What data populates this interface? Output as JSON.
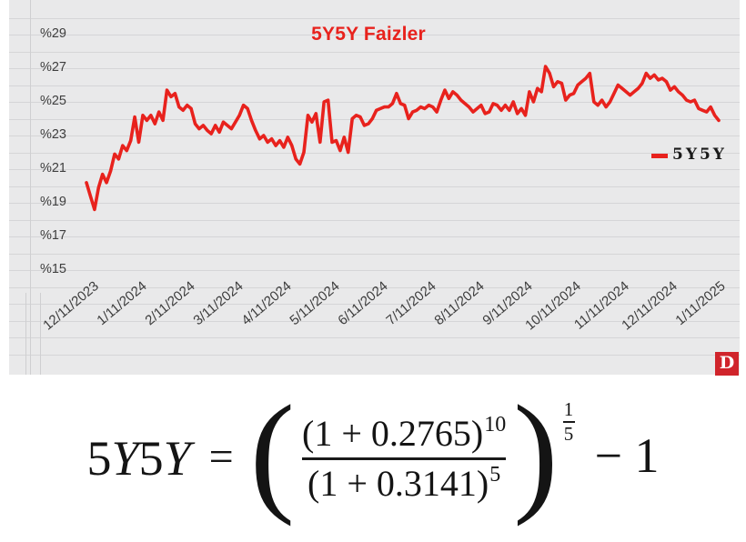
{
  "chart": {
    "title": "5Y5Y Faizler",
    "legend_label": "5Y5Y",
    "brand_letter": "D",
    "colors": {
      "line": "#e8221d",
      "title": "#e8221d",
      "background": "#e9e9ea",
      "grid": "#d5d5d7",
      "label": "#3c3c3c",
      "logo_bg": "#d0242b"
    }
  },
  "chart_data": {
    "type": "line",
    "title": "5Y5Y Faizler",
    "legend_position": "right",
    "grid": true,
    "ylim": [
      14,
      30
    ],
    "y_ticks": [
      29,
      27,
      25,
      23,
      21,
      19,
      17,
      15
    ],
    "y_tick_labels": [
      "%29",
      "%27",
      "%25",
      "%23",
      "%21",
      "%19",
      "%17",
      "%15"
    ],
    "x_tick_labels": [
      "12/11/2023",
      "1/11/2024",
      "2/11/2024",
      "3/11/2024",
      "4/11/2024",
      "5/11/2024",
      "6/11/2024",
      "7/11/2024",
      "8/11/2024",
      "9/11/2024",
      "10/11/2024",
      "11/11/2024",
      "12/11/2024",
      "1/11/2025"
    ],
    "series": [
      {
        "name": "5Y5Y",
        "color": "#e8221d",
        "values": [
          20.2,
          19.4,
          18.6,
          19.9,
          20.7,
          20.2,
          20.9,
          21.9,
          21.6,
          22.4,
          22.1,
          22.7,
          24.1,
          22.6,
          24.2,
          23.9,
          24.2,
          23.7,
          24.4,
          23.9,
          25.7,
          25.3,
          25.5,
          24.7,
          24.5,
          24.8,
          24.6,
          23.7,
          23.4,
          23.6,
          23.3,
          23.1,
          23.6,
          23.2,
          23.8,
          23.6,
          23.4,
          23.8,
          24.2,
          24.8,
          24.6,
          23.9,
          23.3,
          22.8,
          23.0,
          22.6,
          22.8,
          22.4,
          22.7,
          22.3,
          22.9,
          22.4,
          21.6,
          21.3,
          22.0,
          24.2,
          23.8,
          24.3,
          22.6,
          25.0,
          25.1,
          22.6,
          22.7,
          22.1,
          22.9,
          22.0,
          24.0,
          24.2,
          24.1,
          23.6,
          23.7,
          24.0,
          24.5,
          24.6,
          24.7,
          24.7,
          24.9,
          25.5,
          24.9,
          24.8,
          24.0,
          24.4,
          24.5,
          24.7,
          24.6,
          24.8,
          24.7,
          24.4,
          25.1,
          25.7,
          25.2,
          25.6,
          25.4,
          25.1,
          24.9,
          24.7,
          24.4,
          24.6,
          24.8,
          24.3,
          24.4,
          24.9,
          24.8,
          24.5,
          24.8,
          24.5,
          25.0,
          24.3,
          24.6,
          24.2,
          25.6,
          25.0,
          25.8,
          25.6,
          27.1,
          26.7,
          25.9,
          26.2,
          26.1,
          25.1,
          25.4,
          25.5,
          26.0,
          26.2,
          26.4,
          26.7,
          25.0,
          24.8,
          25.1,
          24.7,
          25.0,
          25.5,
          26.0,
          25.8,
          25.6,
          25.4,
          25.6,
          25.8,
          26.1,
          26.7,
          26.4,
          26.6,
          26.3,
          26.4,
          26.2,
          25.7,
          25.9,
          25.6,
          25.4,
          25.1,
          25.0,
          25.1,
          24.6,
          24.5,
          24.4,
          24.7,
          24.2,
          23.9
        ]
      }
    ]
  },
  "formula": {
    "lhs_parts": {
      "d1": "5",
      "v1": "Y",
      "d2": "5",
      "v2": "Y"
    },
    "equals": "=",
    "open_paren": "(",
    "close_paren": ")",
    "numerator_base": "(1 + 0.2765)",
    "numerator_exp": "10",
    "denominator_base": "(1 + 0.3141)",
    "denominator_exp": "5",
    "outer_exp_num": "1",
    "outer_exp_den": "5",
    "minus": "−",
    "one": "1"
  }
}
